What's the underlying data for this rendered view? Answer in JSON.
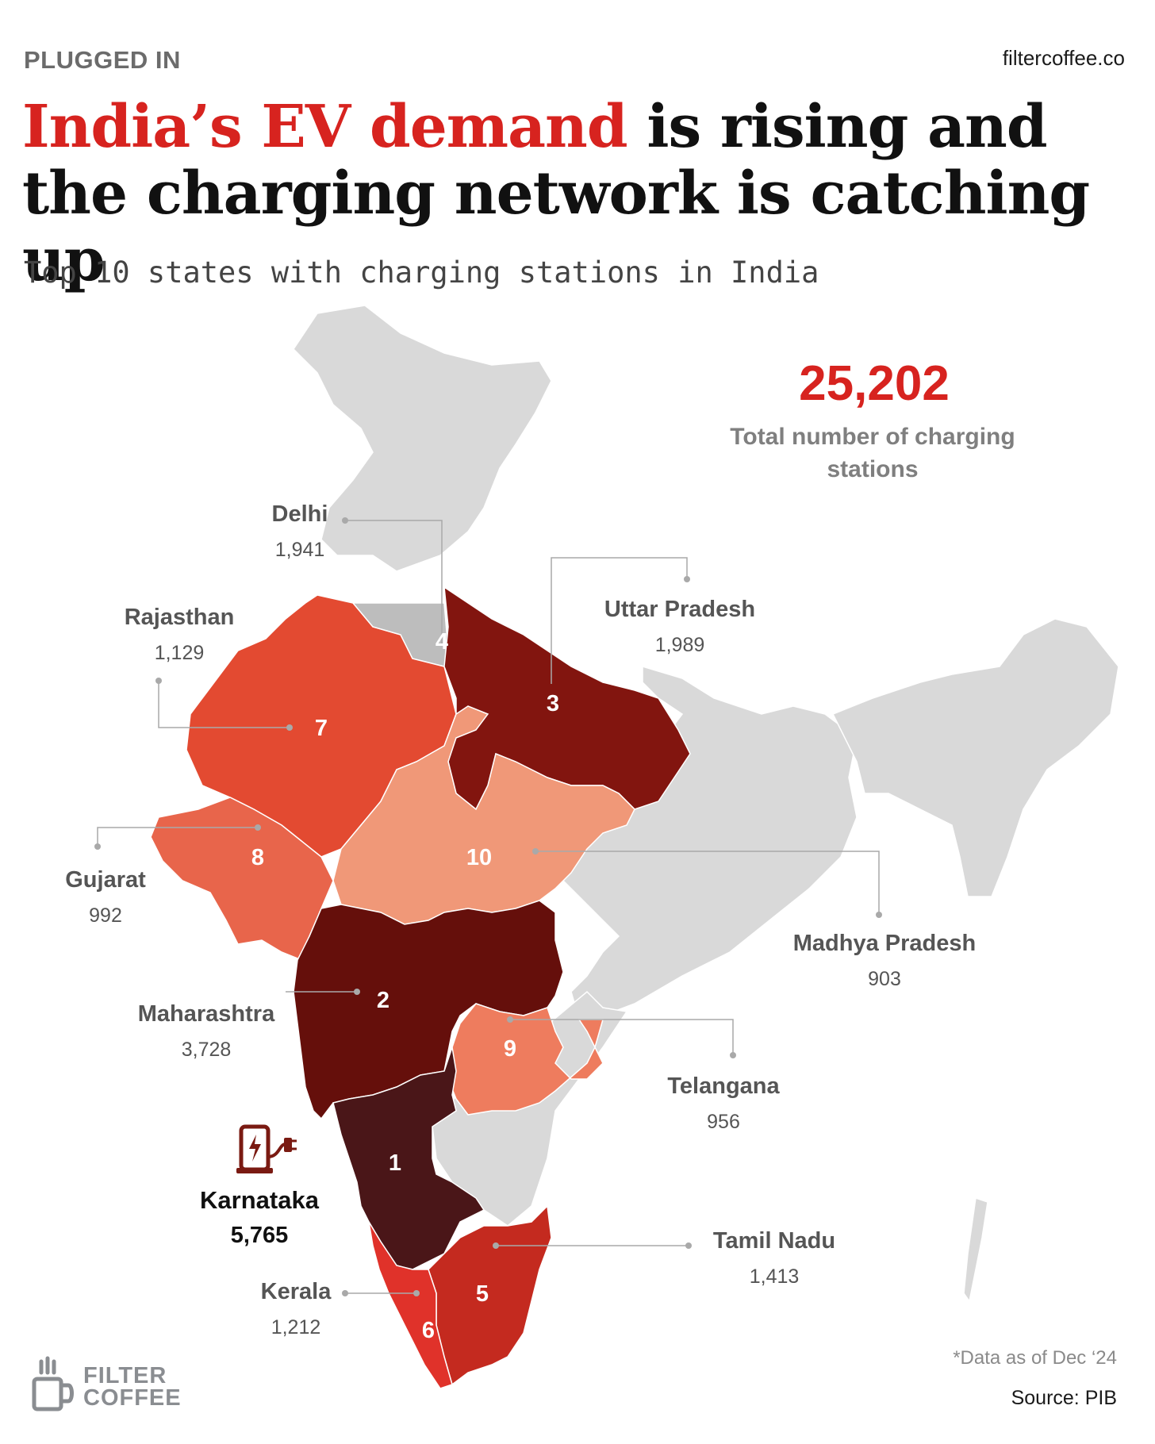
{
  "header": {
    "kicker": "PLUGGED IN",
    "site": "filtercoffee.co",
    "title_highlight": "India’s EV demand",
    "title_rest": " is rising and the charging network is catching up",
    "subtitle": "Top 10 states with charging stations in India"
  },
  "total": {
    "value": "25,202",
    "label": "Total number of charging stations"
  },
  "states": [
    {
      "rank": "1",
      "name": "Karnataka",
      "value": "5,765",
      "color": "#4a1618"
    },
    {
      "rank": "2",
      "name": "Maharashtra",
      "value": "3,728",
      "color": "#650f0b"
    },
    {
      "rank": "3",
      "name": "Uttar Pradesh",
      "value": "1,989",
      "color": "#82150f"
    },
    {
      "rank": "4",
      "name": "Delhi",
      "value": "1,941",
      "color": "#bdbdbd"
    },
    {
      "rank": "5",
      "name": "Tamil Nadu",
      "value": "1,413",
      "color": "#c42a1f"
    },
    {
      "rank": "6",
      "name": "Kerala",
      "value": "1,212",
      "color": "#e0322a"
    },
    {
      "rank": "7",
      "name": "Rajasthan",
      "value": "1,129",
      "color": "#e34a31"
    },
    {
      "rank": "8",
      "name": "Gujarat",
      "value": "992",
      "color": "#e8654b"
    },
    {
      "rank": "9",
      "name": "Telangana",
      "value": "956",
      "color": "#ee7c5e"
    },
    {
      "rank": "10",
      "name": "Madhya Pradesh",
      "value": "903",
      "color": "#f09878"
    }
  ],
  "colors": {
    "other_states": "#d9d9d9",
    "accent": "#d7231f",
    "leader": "#a9a9a9"
  },
  "icons": {
    "charger": "ev-charger-icon",
    "logo": "coffee-cup-icon"
  },
  "footer": {
    "note": "*Data as of Dec ‘24",
    "source": "Source: PIB",
    "logo_line1": "FILTER",
    "logo_line2": "COFFEE"
  }
}
